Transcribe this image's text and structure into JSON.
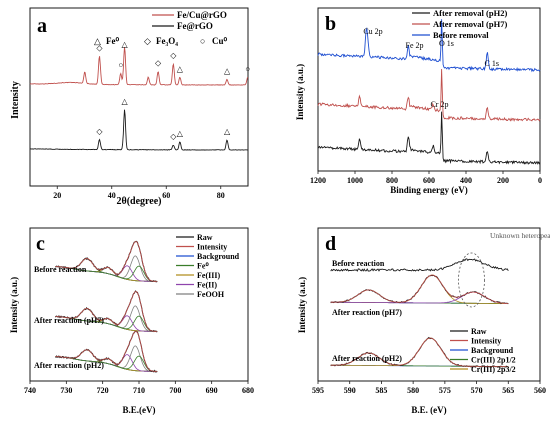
{
  "colors": {
    "black": "#1a1a1a",
    "red": "#c0504d",
    "blue": "#1f4fd1",
    "green": "#3a7d2a",
    "olive": "#b08d1e",
    "purple": "#8e44ad",
    "gray": "#7f7f7f"
  },
  "chart_data": [
    {
      "panel": "a",
      "type": "line",
      "xlabel": "2θ(degree)",
      "ylabel": "Intensity",
      "xlim": [
        10,
        90
      ],
      "x_ticks": [
        20,
        40,
        60,
        80
      ],
      "legend": [
        {
          "name": "Fe/Cu@rGO",
          "color": "#c0504d"
        },
        {
          "name": "Fe@rGO",
          "color": "#1a1a1a"
        }
      ],
      "symbol_legend": [
        {
          "symbol": "△",
          "label": "Fe⁰"
        },
        {
          "symbol": "◇",
          "label": "Fe₃O₄"
        },
        {
          "symbol": "○",
          "label": "Cu⁰"
        }
      ],
      "series": [
        {
          "name": "Fe/Cu@rGO",
          "peaks": [
            [
              30.1,
              0.3
            ],
            [
              35.5,
              0.75
            ],
            [
              43.3,
              0.3
            ],
            [
              44.7,
              1.0
            ],
            [
              53.4,
              0.2
            ],
            [
              57.0,
              0.35
            ],
            [
              62.6,
              0.55
            ],
            [
              65.0,
              0.2
            ],
            [
              82.3,
              0.15
            ],
            [
              89.9,
              0.2
            ]
          ]
        },
        {
          "name": "Fe@rGO",
          "peaks": [
            [
              35.5,
              0.25
            ],
            [
              44.7,
              1.0
            ],
            [
              62.6,
              0.12
            ],
            [
              65.0,
              0.2
            ],
            [
              82.3,
              0.25
            ]
          ]
        }
      ],
      "markers": [
        {
          "x": 35.5,
          "series": "Fe/Cu@rGO",
          "symbol": "◇"
        },
        {
          "x": 43.3,
          "series": "Fe/Cu@rGO",
          "symbol": "○"
        },
        {
          "x": 44.7,
          "series": "Fe/Cu@rGO",
          "symbol": "△"
        },
        {
          "x": 57.0,
          "series": "Fe/Cu@rGO",
          "symbol": "◇"
        },
        {
          "x": 62.6,
          "series": "Fe/Cu@rGO",
          "symbol": "◇"
        },
        {
          "x": 65.0,
          "series": "Fe/Cu@rGO",
          "symbol": "△"
        },
        {
          "x": 82.3,
          "series": "Fe/Cu@rGO",
          "symbol": "△"
        },
        {
          "x": 89.9,
          "series": "Fe/Cu@rGO",
          "symbol": "○"
        },
        {
          "x": 35.5,
          "series": "Fe@rGO",
          "symbol": "◇"
        },
        {
          "x": 44.7,
          "series": "Fe@rGO",
          "symbol": "△"
        },
        {
          "x": 62.6,
          "series": "Fe@rGO",
          "symbol": "◇"
        },
        {
          "x": 65.0,
          "series": "Fe@rGO",
          "symbol": "△"
        },
        {
          "x": 82.3,
          "series": "Fe@rGO",
          "symbol": "△"
        }
      ]
    },
    {
      "panel": "b",
      "type": "line",
      "xlabel": "Binding energy (eV)",
      "ylabel": "Intensity (a.u.)",
      "xlim": [
        1200,
        0
      ],
      "x_ticks": [
        1200,
        1000,
        800,
        600,
        400,
        200,
        0
      ],
      "legend": [
        {
          "name": "After removal (pH2)",
          "color": "#1a1a1a"
        },
        {
          "name": "After removal (pH7)",
          "color": "#c0504d"
        },
        {
          "name": "Before removal",
          "color": "#1f4fd1"
        }
      ],
      "annotations": [
        {
          "text": "Cu 2p",
          "x": 940
        },
        {
          "text": "Fe 2p",
          "x": 712
        },
        {
          "text": "O 1s",
          "x": 531
        },
        {
          "text": "C 1s",
          "x": 285
        },
        {
          "text": "Cr 2p",
          "x": 577
        }
      ],
      "series": [
        {
          "name": "Before removal",
          "peaks": [
            [
              940,
              0.6
            ],
            [
              932,
              0.45
            ],
            [
              712,
              0.35
            ],
            [
              531,
              1.0
            ],
            [
              285,
              0.5
            ]
          ]
        },
        {
          "name": "After removal (pH7)",
          "peaks": [
            [
              975,
              0.3
            ],
            [
              712,
              0.35
            ],
            [
              577,
              0.15
            ],
            [
              531,
              1.0
            ],
            [
              285,
              0.3
            ]
          ]
        },
        {
          "name": "After removal (pH2)",
          "peaks": [
            [
              975,
              0.3
            ],
            [
              712,
              0.45
            ],
            [
              577,
              0.2
            ],
            [
              531,
              1.0
            ],
            [
              285,
              0.3
            ]
          ]
        }
      ]
    },
    {
      "panel": "c",
      "type": "line",
      "xlabel": "B.E.(eV)",
      "ylabel": "Intensity (a.u.)",
      "xlim": [
        740,
        680
      ],
      "x_ticks": [
        740,
        730,
        720,
        710,
        700,
        690,
        680
      ],
      "legend": [
        {
          "name": "Raw",
          "color": "#1a1a1a"
        },
        {
          "name": "Intensity",
          "color": "#c0504d"
        },
        {
          "name": "Background",
          "color": "#1f4fd1"
        },
        {
          "name": "Fe⁰",
          "color": "#3a7d2a"
        },
        {
          "name": "Fe(III)",
          "color": "#b08d1e"
        },
        {
          "name": "Fe(II)",
          "color": "#8e44ad"
        },
        {
          "name": "FeOOH",
          "color": "#7f7f7f"
        }
      ],
      "spectra": [
        {
          "label": "Before reaction",
          "peaks": [
            [
              724.3,
              0.5
            ],
            [
              718.5,
              0.25
            ],
            [
              713.2,
              0.55
            ],
            [
              711.0,
              1.0
            ],
            [
              710.0,
              0.6
            ]
          ]
        },
        {
          "label": "After reaction (pH7)",
          "peaks": [
            [
              724.3,
              0.5
            ],
            [
              718.5,
              0.2
            ],
            [
              713.2,
              0.55
            ],
            [
              711.0,
              1.0
            ],
            [
              710.0,
              0.6
            ]
          ]
        },
        {
          "label": "After reaction (pH2)",
          "peaks": [
            [
              724.3,
              0.45
            ],
            [
              718.5,
              0.2
            ],
            [
              713.2,
              0.6
            ],
            [
              711.0,
              1.0
            ],
            [
              710.0,
              0.6
            ]
          ]
        }
      ]
    },
    {
      "panel": "d",
      "type": "line",
      "xlabel": "B.E. (eV)",
      "ylabel": "Intensity (a.u.)",
      "xlim": [
        595,
        560
      ],
      "x_ticks": [
        595,
        590,
        585,
        580,
        575,
        570,
        565,
        560
      ],
      "legend": [
        {
          "name": "Raw",
          "color": "#1a1a1a"
        },
        {
          "name": "Intensity",
          "color": "#c0504d"
        },
        {
          "name": "Background",
          "color": "#1f4fd1"
        },
        {
          "name": "Cr(III) 2p1/2",
          "color": "#3a7d2a"
        },
        {
          "name": "Cr(III) 2p3/2",
          "color": "#b08d1e"
        }
      ],
      "annotation": "Unknown heteropeak",
      "spectra": [
        {
          "label": "Before reaction",
          "peaks": [
            [
              571,
              0.8
            ]
          ]
        },
        {
          "label": "After reaction (pH7)",
          "peaks": [
            [
              587,
              0.45
            ],
            [
              577,
              1.0
            ],
            [
              570.5,
              0.4
            ]
          ]
        },
        {
          "label": "After reaction (pH2)",
          "peaks": [
            [
              587,
              0.45
            ],
            [
              577.3,
              1.0
            ]
          ]
        }
      ]
    }
  ]
}
